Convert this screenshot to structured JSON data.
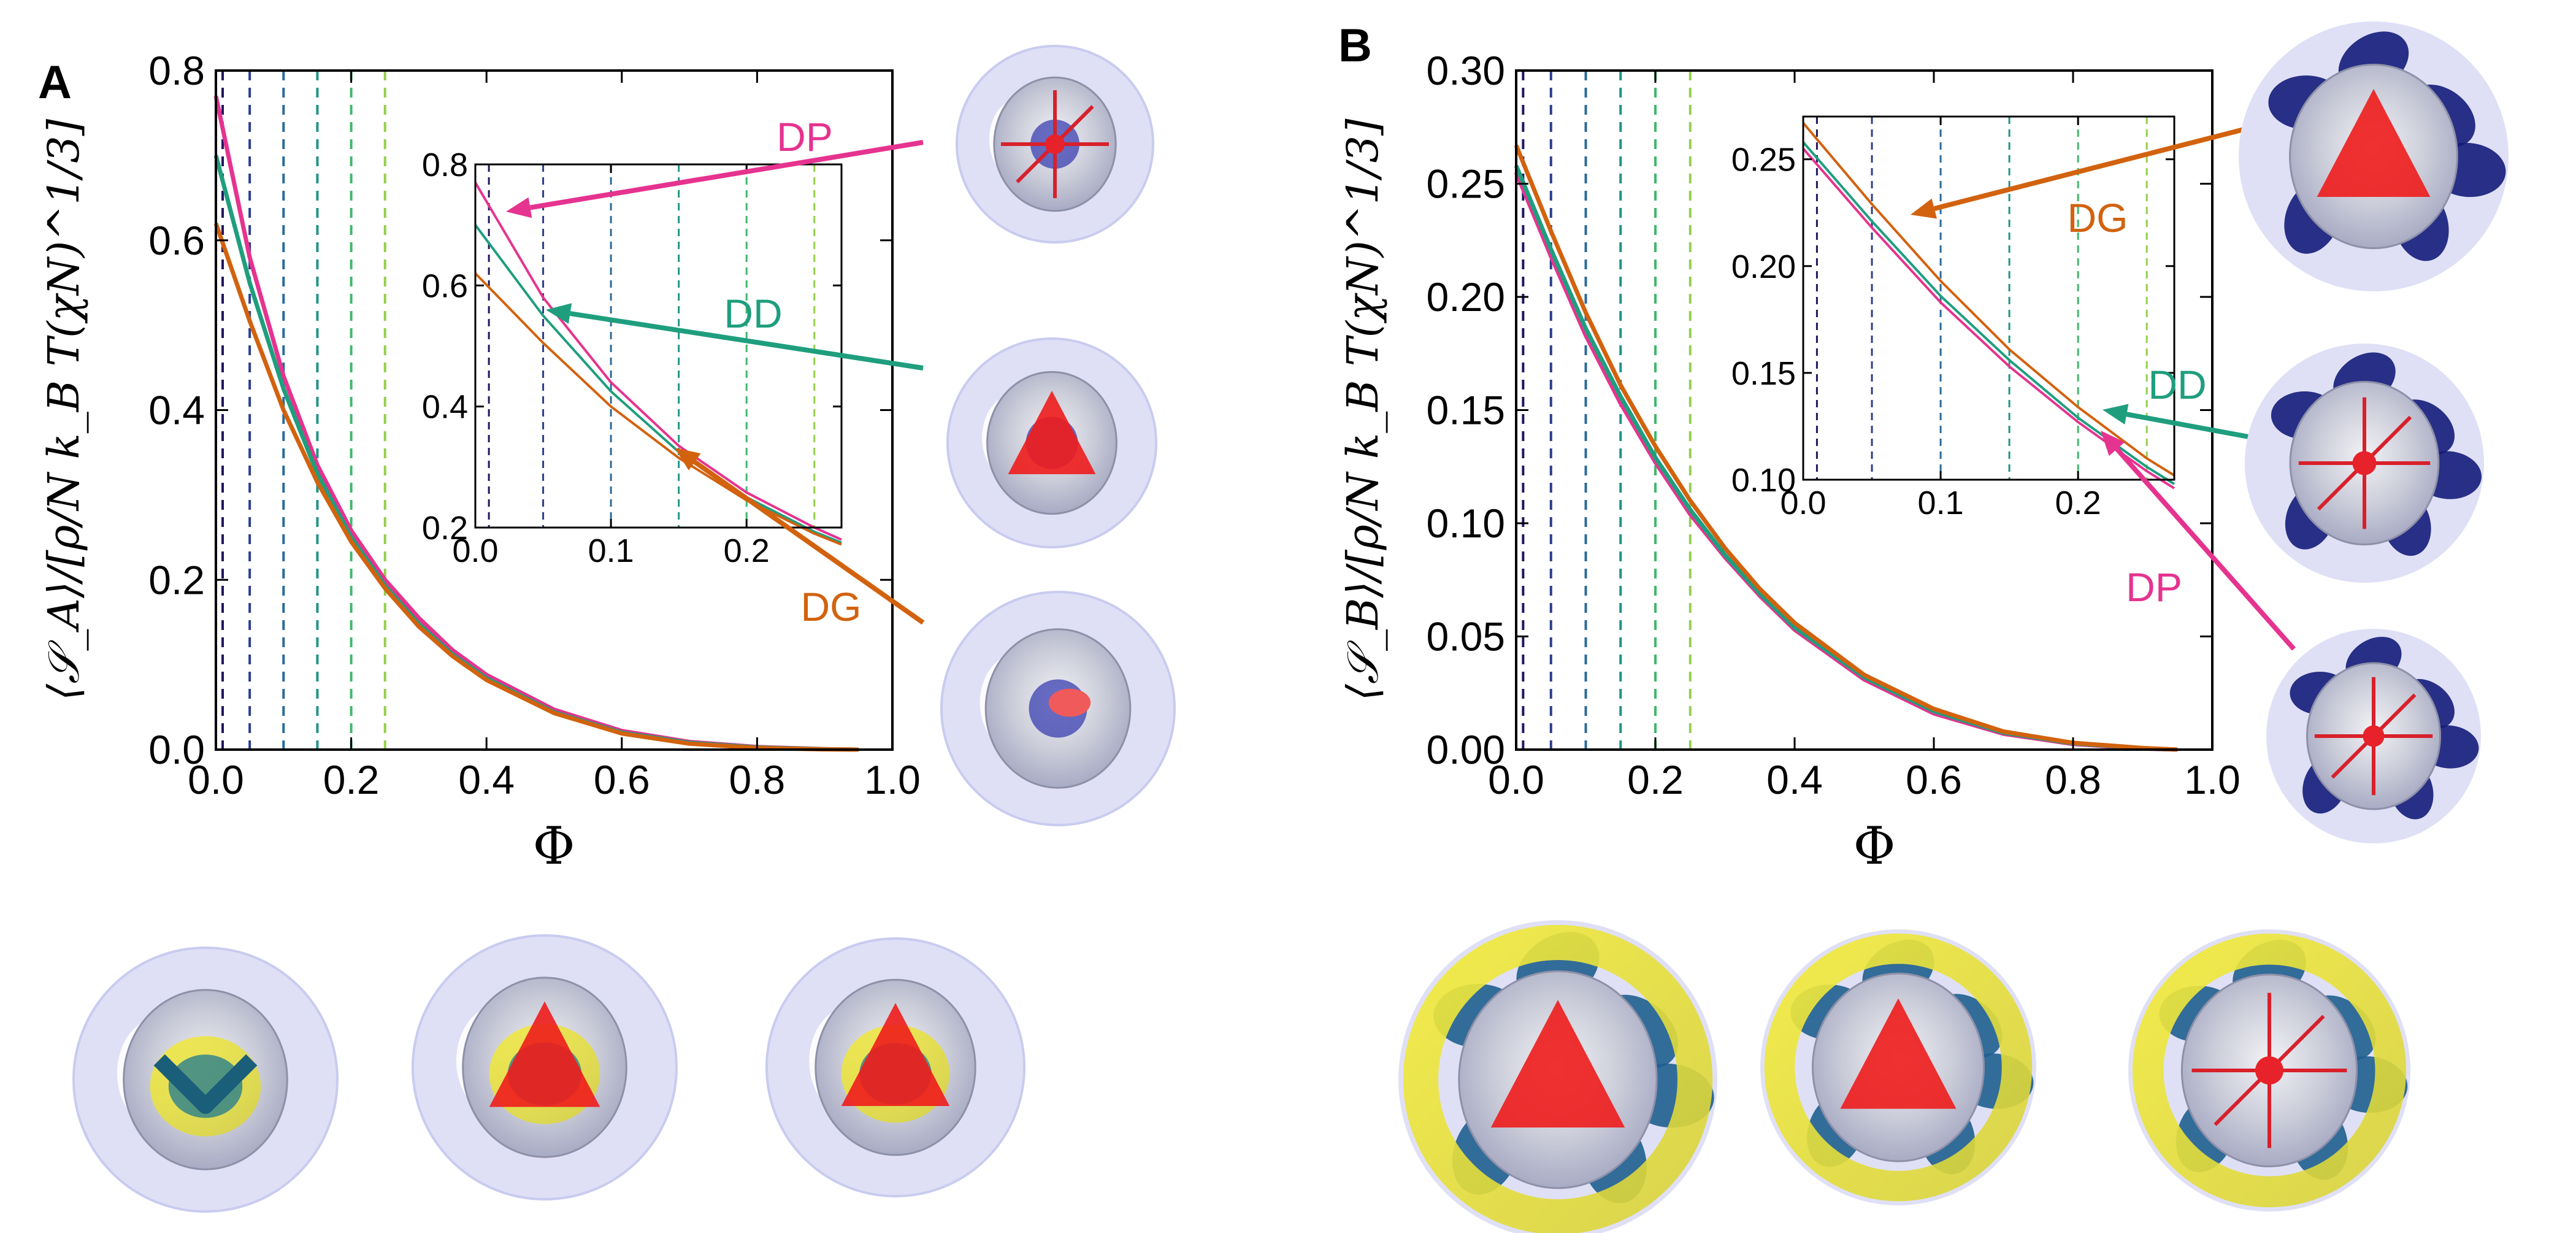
{
  "colors": {
    "DP": "#e5338f",
    "DD": "#1f9e7e",
    "DG": "#d2620e",
    "vlines": [
      "#21165f",
      "#2c3e8c",
      "#2a6a9a",
      "#1f9488",
      "#3fb86b",
      "#93cf4b",
      "#e8dc2a"
    ]
  },
  "panels": [
    {
      "letter": "A",
      "ylabel": "⟨𝒮_A⟩/[ρ/N k_B T(χN)^1/3]",
      "thumbs": [
        "render-A-DP",
        "render-A-DD",
        "render-A-DG"
      ],
      "bottom": [
        "render-A-1",
        "render-A-2",
        "render-A-3"
      ],
      "chart_data": {
        "type": "line",
        "title": "",
        "xlabel": "Φ",
        "ylabel": "⟨S_A⟩ / [ρ/N k_B T (χN)^{1/3}]",
        "xlim": [
          0,
          1.0
        ],
        "ylim": [
          0,
          0.8
        ],
        "xticks": [
          "0.0",
          "0.2",
          "0.4",
          "0.6",
          "0.8",
          "1.0"
        ],
        "yticks": [
          "0.0",
          "0.2",
          "0.4",
          "0.6",
          "0.8"
        ],
        "vlines": [
          0.01,
          0.05,
          0.1,
          0.15,
          0.2,
          0.25
        ],
        "x": [
          0.0,
          0.05,
          0.1,
          0.15,
          0.2,
          0.25,
          0.3,
          0.35,
          0.4,
          0.5,
          0.6,
          0.7,
          0.8,
          0.9,
          0.95
        ],
        "series": [
          {
            "name": "DP",
            "values": [
              0.77,
              0.58,
              0.44,
              0.335,
              0.258,
              0.2,
              0.155,
              0.117,
              0.088,
              0.047,
              0.022,
              0.009,
              0.003,
              0.0005,
              0.0
            ]
          },
          {
            "name": "DD",
            "values": [
              0.7,
              0.55,
              0.425,
              0.325,
              0.25,
              0.193,
              0.148,
              0.112,
              0.084,
              0.044,
              0.02,
              0.008,
              0.0025,
              0.0004,
              0.0
            ]
          },
          {
            "name": "DG",
            "values": [
              0.62,
              0.505,
              0.4,
              0.315,
              0.245,
              0.19,
              0.145,
              0.11,
              0.082,
              0.043,
              0.019,
              0.007,
              0.002,
              0.0003,
              0.0
            ]
          }
        ],
        "inset": {
          "xlim": [
            0,
            0.27
          ],
          "ylim": [
            0.2,
            0.8
          ],
          "xticks": [
            "0.0",
            "0.1",
            "0.2"
          ],
          "yticks": [
            "0.2",
            "0.4",
            "0.6",
            "0.8"
          ],
          "vlines": [
            0.01,
            0.05,
            0.1,
            0.15,
            0.2,
            0.25
          ],
          "x": [
            0.0,
            0.05,
            0.1,
            0.15,
            0.2,
            0.25,
            0.27
          ],
          "series": [
            {
              "name": "DP",
              "values": [
                0.77,
                0.58,
                0.44,
                0.335,
                0.258,
                0.2,
                0.18
              ]
            },
            {
              "name": "DD",
              "values": [
                0.7,
                0.55,
                0.425,
                0.325,
                0.25,
                0.193,
                0.175
              ]
            },
            {
              "name": "DG",
              "values": [
                0.62,
                0.505,
                0.4,
                0.315,
                0.245,
                0.19,
                0.172
              ]
            }
          ]
        },
        "annotations": [
          {
            "label": "DP",
            "color_key": "DP"
          },
          {
            "label": "DD",
            "color_key": "DD"
          },
          {
            "label": "DG",
            "color_key": "DG"
          }
        ]
      }
    },
    {
      "letter": "B",
      "ylabel": "⟨𝒮_B⟩/[ρ/N k_B T(χN)^1/3]",
      "thumbs": [
        "render-B-DG",
        "render-B-DD",
        "render-B-DP"
      ],
      "bottom": [
        "render-B-1",
        "render-B-2",
        "render-B-3"
      ],
      "chart_data": {
        "type": "line",
        "title": "",
        "xlabel": "Φ",
        "ylabel": "⟨S_B⟩ / [ρ/N k_B T (χN)^{1/3}]",
        "xlim": [
          0,
          1.0
        ],
        "ylim": [
          0,
          0.3
        ],
        "xticks": [
          "0.0",
          "0.2",
          "0.4",
          "0.6",
          "0.8",
          "1.0"
        ],
        "yticks": [
          "0.00",
          "0.05",
          "0.10",
          "0.15",
          "0.20",
          "0.25",
          "0.30"
        ],
        "vlines": [
          0.01,
          0.05,
          0.1,
          0.15,
          0.2,
          0.25
        ],
        "x": [
          0.0,
          0.05,
          0.1,
          0.15,
          0.2,
          0.25,
          0.3,
          0.35,
          0.4,
          0.5,
          0.6,
          0.7,
          0.8,
          0.9,
          0.95
        ],
        "series": [
          {
            "name": "DP",
            "values": [
              0.255,
              0.218,
              0.183,
              0.153,
              0.127,
              0.104,
              0.085,
              0.068,
              0.053,
              0.031,
              0.016,
              0.007,
              0.0025,
              0.0005,
              0.0
            ]
          },
          {
            "name": "DD",
            "values": [
              0.258,
              0.221,
              0.186,
              0.156,
              0.129,
              0.106,
              0.086,
              0.069,
              0.054,
              0.032,
              0.017,
              0.0075,
              0.0028,
              0.0006,
              0.0
            ]
          },
          {
            "name": "DG",
            "values": [
              0.267,
              0.229,
              0.193,
              0.161,
              0.134,
              0.11,
              0.089,
              0.071,
              0.056,
              0.033,
              0.018,
              0.008,
              0.003,
              0.0007,
              0.0
            ]
          }
        ],
        "inset": {
          "xlim": [
            0,
            0.27
          ],
          "ylim": [
            0.1,
            0.27
          ],
          "xticks": [
            "0.0",
            "0.1",
            "0.2"
          ],
          "yticks": [
            "0.10",
            "0.15",
            "0.20",
            "0.25"
          ],
          "vlines": [
            0.01,
            0.05,
            0.1,
            0.15,
            0.2,
            0.25
          ],
          "x": [
            0.0,
            0.05,
            0.1,
            0.15,
            0.2,
            0.25,
            0.27
          ],
          "series": [
            {
              "name": "DP",
              "values": [
                0.255,
                0.218,
                0.183,
                0.153,
                0.127,
                0.104,
                0.096
              ]
            },
            {
              "name": "DD",
              "values": [
                0.258,
                0.221,
                0.186,
                0.156,
                0.129,
                0.106,
                0.098
              ]
            },
            {
              "name": "DG",
              "values": [
                0.267,
                0.229,
                0.193,
                0.161,
                0.134,
                0.11,
                0.102
              ]
            }
          ]
        },
        "annotations": [
          {
            "label": "DG",
            "color_key": "DG"
          },
          {
            "label": "DD",
            "color_key": "DD"
          },
          {
            "label": "DP",
            "color_key": "DP"
          }
        ]
      }
    }
  ]
}
